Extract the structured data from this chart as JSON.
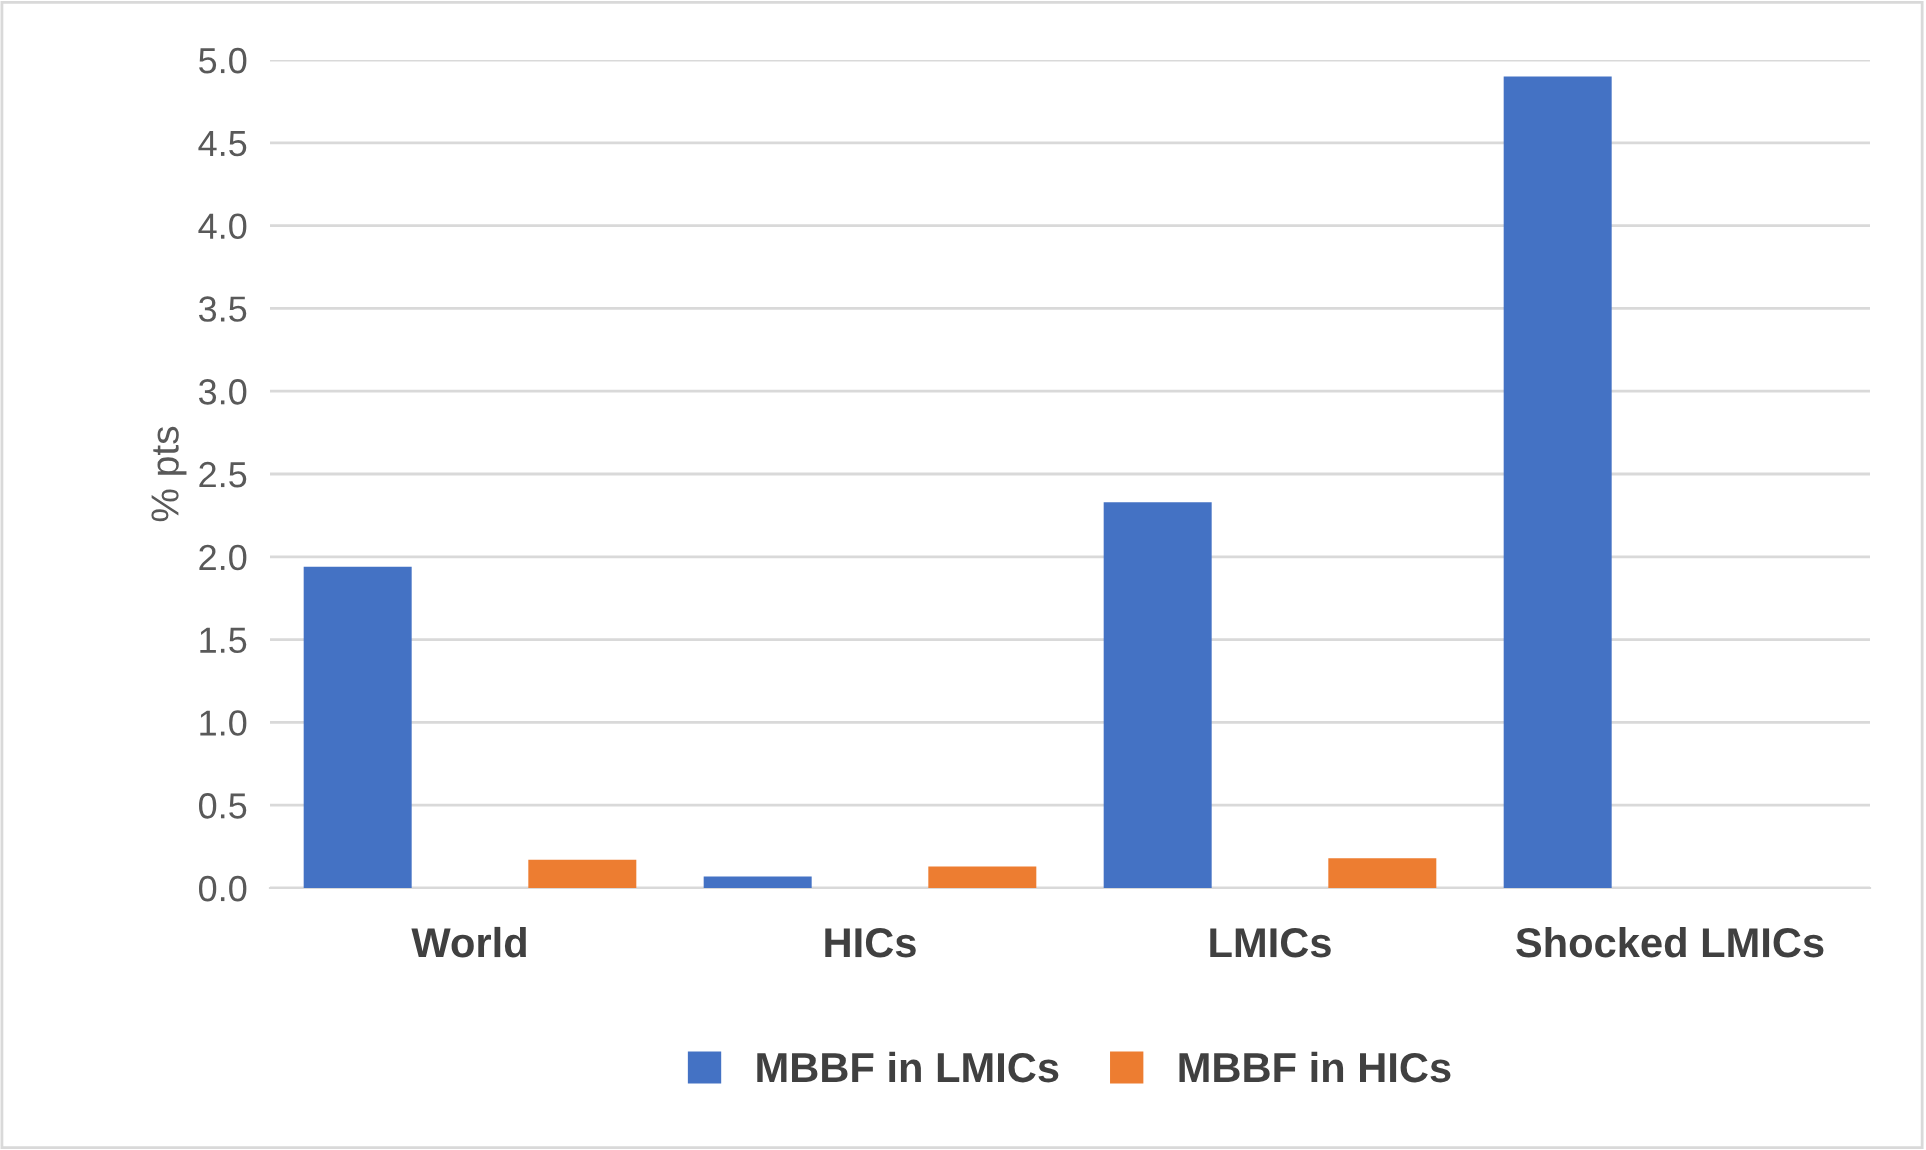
{
  "chart_data": {
    "type": "bar",
    "ylabel": "% pts",
    "categories": [
      "World",
      "HICs",
      "LMICs",
      "Shocked LMICs"
    ],
    "series": [
      {
        "name": "MBBF in LMICs",
        "color": "#4472c4",
        "values": [
          1.94,
          0.07,
          2.33,
          4.9
        ]
      },
      {
        "name": "MBBF in HICs",
        "color": "#ed7d31",
        "values": [
          0.17,
          0.13,
          0.18,
          null
        ]
      }
    ],
    "ylim": [
      0,
      5
    ],
    "yticks": [
      {
        "value": 0,
        "label": "0.0"
      },
      {
        "value": 0.5,
        "label": "0.5"
      },
      {
        "value": 1,
        "label": "1.0"
      },
      {
        "value": 1.5,
        "label": "1.5"
      },
      {
        "value": 2,
        "label": "2.0"
      },
      {
        "value": 2.5,
        "label": "2.5"
      },
      {
        "value": 3,
        "label": "3.0"
      },
      {
        "value": 3.5,
        "label": "3.5"
      },
      {
        "value": 4,
        "label": "4.0"
      },
      {
        "value": 4.5,
        "label": "4.5"
      },
      {
        "value": 5,
        "label": "5.0"
      }
    ],
    "grid": "y",
    "legend": "bottom"
  }
}
